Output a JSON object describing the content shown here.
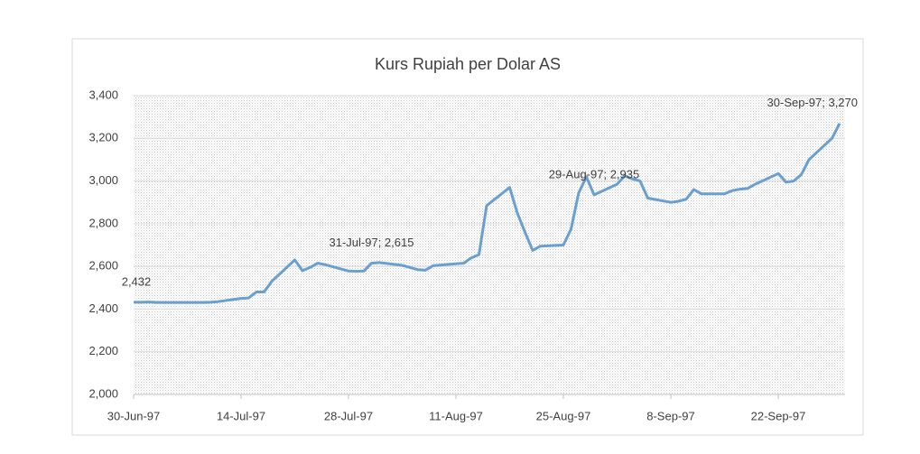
{
  "chart_data": {
    "type": "line",
    "title": "Kurs Rupiah per Dolar AS",
    "x": [
      "1997-06-30",
      "1997-07-01",
      "1997-07-02",
      "1997-07-03",
      "1997-07-04",
      "1997-07-07",
      "1997-07-08",
      "1997-07-09",
      "1997-07-10",
      "1997-07-11",
      "1997-07-14",
      "1997-07-15",
      "1997-07-16",
      "1997-07-17",
      "1997-07-18",
      "1997-07-21",
      "1997-07-22",
      "1997-07-23",
      "1997-07-24",
      "1997-07-25",
      "1997-07-28",
      "1997-07-29",
      "1997-07-30",
      "1997-07-31",
      "1997-08-01",
      "1997-08-04",
      "1997-08-05",
      "1997-08-06",
      "1997-08-07",
      "1997-08-08",
      "1997-08-11",
      "1997-08-12",
      "1997-08-13",
      "1997-08-14",
      "1997-08-15",
      "1997-08-18",
      "1997-08-19",
      "1997-08-20",
      "1997-08-21",
      "1997-08-22",
      "1997-08-25",
      "1997-08-26",
      "1997-08-27",
      "1997-08-28",
      "1997-08-29",
      "1997-09-01",
      "1997-09-02",
      "1997-09-03",
      "1997-09-04",
      "1997-09-05",
      "1997-09-08",
      "1997-09-09",
      "1997-09-10",
      "1997-09-11",
      "1997-09-12",
      "1997-09-15",
      "1997-09-16",
      "1997-09-17",
      "1997-09-18",
      "1997-09-19",
      "1997-09-22",
      "1997-09-23",
      "1997-09-24",
      "1997-09-25",
      "1997-09-26",
      "1997-09-29",
      "1997-09-30"
    ],
    "series": [
      {
        "name": "Kurs",
        "color": "#6a9fd0",
        "values": [
          2432,
          2432,
          2433,
          2431,
          2431,
          2431,
          2431,
          2431,
          2432,
          2435,
          2450,
          2452,
          2480,
          2480,
          2530,
          2630,
          2580,
          2595,
          2615,
          2608,
          2578,
          2577,
          2578,
          2615,
          2618,
          2605,
          2595,
          2585,
          2582,
          2603,
          2612,
          2615,
          2640,
          2655,
          2885,
          2970,
          2850,
          2760,
          2675,
          2695,
          2700,
          2775,
          2945,
          3020,
          2935,
          2985,
          3025,
          3010,
          3000,
          2920,
          2900,
          2905,
          2915,
          2960,
          2940,
          2940,
          2955,
          2962,
          2965,
          2985,
          3035,
          2995,
          3000,
          3030,
          3100,
          3200,
          3270
        ],
        "value_labels": [
          "2,432",
          null,
          null,
          null,
          null,
          null,
          null,
          null,
          null,
          null,
          null,
          null,
          null,
          null,
          null,
          null,
          null,
          null,
          null,
          null,
          null,
          null,
          null,
          "31-Jul-97; 2,615",
          null,
          null,
          null,
          null,
          null,
          null,
          null,
          null,
          null,
          null,
          null,
          null,
          null,
          null,
          null,
          null,
          null,
          null,
          null,
          null,
          "29-Aug-97; 2,935",
          null,
          null,
          null,
          null,
          null,
          null,
          null,
          null,
          null,
          null,
          null,
          null,
          null,
          null,
          null,
          null,
          null,
          null,
          null,
          null,
          null,
          "30-Sep-97; 3,270"
        ]
      }
    ],
    "xlim": [
      "1997-06-30",
      "1997-09-30"
    ],
    "xticks": [
      {
        "value": "1997-06-30",
        "label": "30-Jun-97"
      },
      {
        "value": "1997-07-14",
        "label": "14-Jul-97"
      },
      {
        "value": "1997-07-28",
        "label": "28-Jul-97"
      },
      {
        "value": "1997-08-11",
        "label": "11-Aug-97"
      },
      {
        "value": "1997-08-25",
        "label": "25-Aug-97"
      },
      {
        "value": "1997-09-08",
        "label": "8-Sep-97"
      },
      {
        "value": "1997-09-22",
        "label": "22-Sep-97"
      }
    ],
    "ylim": [
      2000,
      3400
    ],
    "yticks": [
      {
        "value": 2000,
        "label": "2,000"
      },
      {
        "value": 2200,
        "label": "2,200"
      },
      {
        "value": 2400,
        "label": "2,400"
      },
      {
        "value": 2600,
        "label": "2,600"
      },
      {
        "value": 2800,
        "label": "2,800"
      },
      {
        "value": 3000,
        "label": "3,000"
      },
      {
        "value": 3200,
        "label": "3,200"
      },
      {
        "value": 3400,
        "label": "3,400"
      }
    ],
    "grid": true
  }
}
